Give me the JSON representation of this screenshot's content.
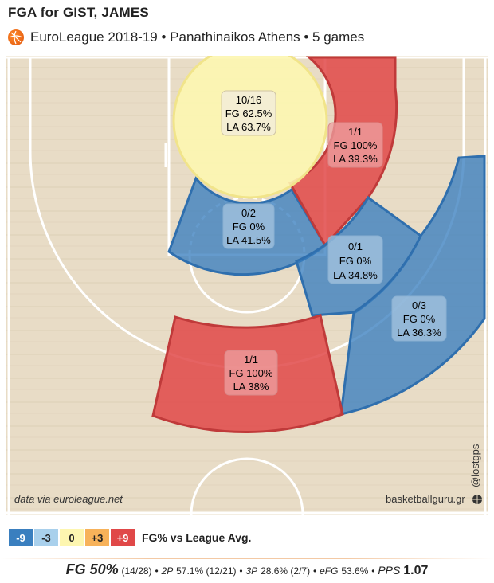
{
  "header": {
    "title": "FGA for GIST, JAMES",
    "subtitle": "EuroLeague 2018-19 • Panathinaikos Athens • 5 games"
  },
  "chart_data": {
    "type": "shot-zone",
    "zones": [
      {
        "id": "restricted",
        "label": "10/16",
        "fg": "FG 62.5%",
        "la": "LA 63.7%",
        "diff": 0
      },
      {
        "id": "paint",
        "label": "0/2",
        "fg": "FG 0%",
        "la": "LA 41.5%",
        "diff": -9
      },
      {
        "id": "mid-right",
        "label": "1/1",
        "fg": "FG 100%",
        "la": "LA 39.3%",
        "diff": 9
      },
      {
        "id": "mid-right-low",
        "label": "0/1",
        "fg": "FG 0%",
        "la": "LA 34.8%",
        "diff": -9
      },
      {
        "id": "three-right",
        "label": "0/3",
        "fg": "FG 0%",
        "la": "LA 36.3%",
        "diff": -9
      },
      {
        "id": "three-top",
        "label": "1/1",
        "fg": "FG 100%",
        "la": "LA 38%",
        "diff": 9
      }
    ],
    "colors": {
      "-9": "#3a7fbf",
      "-3": "#a9d0ec",
      "0": "#fdf6b0",
      "+3": "#f7b25a",
      "+9": "#e04848"
    }
  },
  "court": {
    "source": "data via euroleague.net",
    "brand": "basketballguru.gr",
    "handle": "@lostgps"
  },
  "legend": {
    "items": [
      {
        "label": "-9",
        "color": "#3a7fbf",
        "text_color": "#ffffff"
      },
      {
        "label": "-3",
        "color": "#a9d0ec",
        "text_color": "#222222"
      },
      {
        "label": "0",
        "color": "#fdf6b0",
        "text_color": "#222222"
      },
      {
        "label": "+3",
        "color": "#f7b25a",
        "text_color": "#222222"
      },
      {
        "label": "+9",
        "color": "#e04848",
        "text_color": "#ffffff"
      }
    ],
    "caption": "FG% vs League Avg."
  },
  "stats": {
    "fg_label": "FG 50%",
    "fg_detail": "(14/28)",
    "bullet": "•",
    "p2_label": "2P",
    "p2_value": "57.1% (12/21)",
    "p3_label": "3P",
    "p3_value": "28.6% (2/7)",
    "efg_label": "eFG",
    "efg_value": "53.6%",
    "pps_label": "PPS",
    "pps_value": "1.07"
  }
}
